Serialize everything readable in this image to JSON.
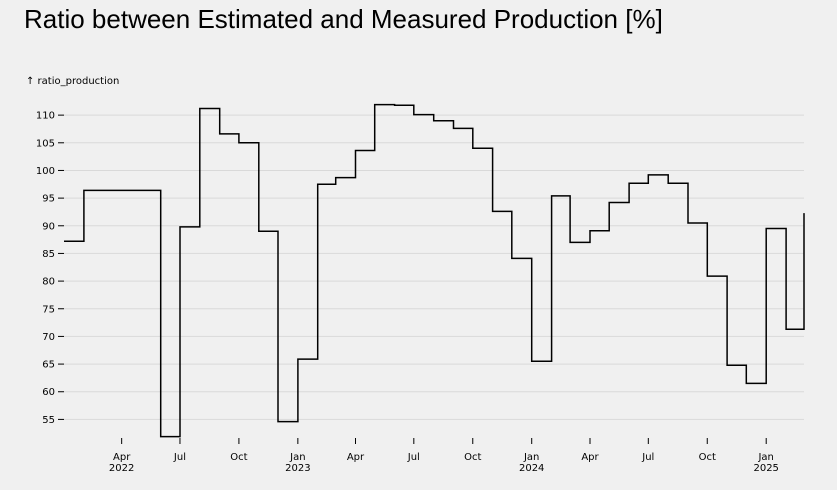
{
  "title": "Ratio between Estimated and Measured Production [%]",
  "chart_data": {
    "type": "line",
    "interpolation": "step",
    "title": "Ratio between Estimated and Measured Production [%]",
    "xlabel": "",
    "ylabel": "↑ ratio_production",
    "ylim": [
      52,
      114
    ],
    "xlim": [
      "2022-01-01",
      "2025-03-01"
    ],
    "grid": true,
    "y_ticks": [
      55,
      60,
      65,
      70,
      75,
      80,
      85,
      90,
      95,
      100,
      105,
      110
    ],
    "x_ticks": [
      {
        "date": "2022-04-01",
        "label": "Apr",
        "sub": "2022"
      },
      {
        "date": "2022-07-01",
        "label": "Jul",
        "sub": ""
      },
      {
        "date": "2022-10-01",
        "label": "Oct",
        "sub": ""
      },
      {
        "date": "2023-01-01",
        "label": "Jan",
        "sub": "2023"
      },
      {
        "date": "2023-04-01",
        "label": "Apr",
        "sub": ""
      },
      {
        "date": "2023-07-01",
        "label": "Jul",
        "sub": ""
      },
      {
        "date": "2023-10-01",
        "label": "Oct",
        "sub": ""
      },
      {
        "date": "2024-01-01",
        "label": "Jan",
        "sub": "2024"
      },
      {
        "date": "2024-04-01",
        "label": "Apr",
        "sub": ""
      },
      {
        "date": "2024-07-01",
        "label": "Jul",
        "sub": ""
      },
      {
        "date": "2024-10-01",
        "label": "Oct",
        "sub": ""
      },
      {
        "date": "2025-01-01",
        "label": "Jan",
        "sub": "2025"
      }
    ],
    "series": [
      {
        "color": "#000000",
        "x": [
          "2022-01-01",
          "2022-02-01",
          "2022-03-01",
          "2022-04-01",
          "2022-05-01",
          "2022-06-01",
          "2022-07-01",
          "2022-08-01",
          "2022-09-01",
          "2022-10-01",
          "2022-11-01",
          "2022-12-01",
          "2023-01-01",
          "2023-02-01",
          "2023-03-01",
          "2023-04-01",
          "2023-05-01",
          "2023-06-01",
          "2023-07-01",
          "2023-08-01",
          "2023-09-01",
          "2023-10-01",
          "2023-11-01",
          "2023-12-01",
          "2024-01-01",
          "2024-02-01",
          "2024-03-01",
          "2024-04-01",
          "2024-05-01",
          "2024-06-01",
          "2024-07-01",
          "2024-08-01",
          "2024-09-01",
          "2024-10-01",
          "2024-11-01",
          "2024-12-01",
          "2025-01-01",
          "2025-02-01"
        ],
        "values": [
          87.2,
          96.4,
          96.4,
          96.4,
          96.4,
          51.9,
          89.8,
          111.2,
          106.6,
          105.0,
          89.0,
          54.6,
          65.9,
          97.5,
          98.7,
          103.6,
          111.9,
          111.8,
          110.1,
          109.0,
          107.6,
          104.0,
          92.6,
          84.1,
          65.5,
          95.4,
          87.0,
          89.1,
          94.2,
          97.7,
          99.2,
          97.7,
          90.5,
          80.9,
          64.8,
          61.5,
          89.5,
          71.3
        ],
        "end_value": 92.3
      }
    ]
  }
}
